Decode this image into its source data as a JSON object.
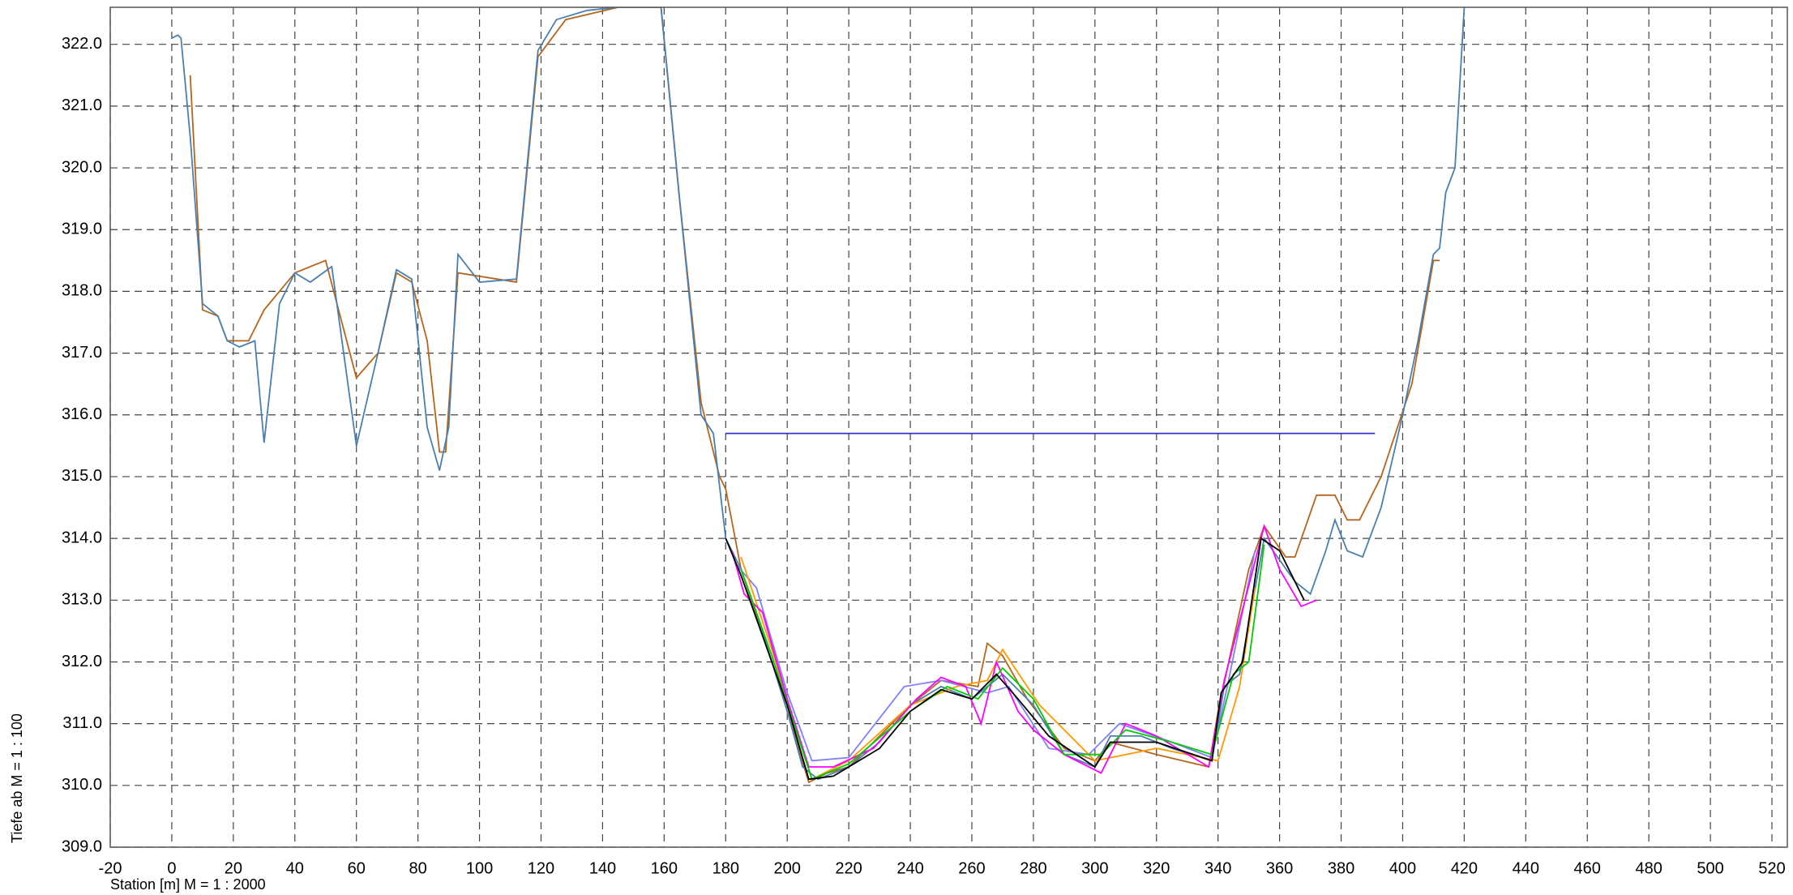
{
  "chart_data": {
    "type": "line",
    "xlabel": "Station [m]  M = 1 :  2000",
    "ylabel": "Tiefe ab    M = 1 : 100",
    "xlim": [
      -20,
      525
    ],
    "ylim": [
      309,
      322.6
    ],
    "xticks": [
      -20,
      0,
      20,
      40,
      60,
      80,
      100,
      120,
      140,
      160,
      180,
      200,
      220,
      240,
      260,
      280,
      300,
      320,
      340,
      360,
      380,
      400,
      420,
      440,
      460,
      480,
      500,
      520
    ],
    "yticks": [
      {
        "value": 309,
        "label": "309.0"
      },
      {
        "value": 310,
        "label": "310.0"
      },
      {
        "value": 311,
        "label": "311.0"
      },
      {
        "value": 312,
        "label": "312.0"
      },
      {
        "value": 313,
        "label": "313.0"
      },
      {
        "value": 314,
        "label": "314.0"
      },
      {
        "value": 315,
        "label": "315.0"
      },
      {
        "value": 316,
        "label": "316.0"
      },
      {
        "value": 317,
        "label": "317.0"
      },
      {
        "value": 318,
        "label": "318.0"
      },
      {
        "value": 319,
        "label": "319.0"
      },
      {
        "value": 320,
        "label": "320.0"
      },
      {
        "value": 321,
        "label": "321.0"
      },
      {
        "value": 322,
        "label": "322.0"
      }
    ],
    "grid": true,
    "series": [
      {
        "color": "#b5651d",
        "x": [
          6,
          10,
          15,
          18,
          25,
          30,
          40,
          50,
          60,
          67,
          73,
          78,
          83,
          87,
          89,
          93,
          112,
          119,
          128,
          145,
          159,
          165,
          172,
          178,
          180,
          185,
          195,
          200,
          207,
          213,
          220,
          240,
          250,
          262,
          265,
          270,
          278,
          290,
          300,
          305,
          320,
          337,
          340,
          350,
          355,
          362,
          365,
          372,
          378,
          382,
          386,
          393,
          403,
          410,
          412
        ],
        "values": [
          321.5,
          317.7,
          317.6,
          317.2,
          317.2,
          317.7,
          318.3,
          318.5,
          316.6,
          317.0,
          318.3,
          318.15,
          317.2,
          315.4,
          315.4,
          318.3,
          318.15,
          321.8,
          322.4,
          322.6,
          322.6,
          319.5,
          316.2,
          315.0,
          314.8,
          313.5,
          312.0,
          311.2,
          310.05,
          310.2,
          310.3,
          311.3,
          311.7,
          311.6,
          312.3,
          312.1,
          311.4,
          310.6,
          310.4,
          310.7,
          310.5,
          310.3,
          311.2,
          313.5,
          314.2,
          313.7,
          313.7,
          314.7,
          314.7,
          314.3,
          314.3,
          315.0,
          316.5,
          318.5,
          318.5
        ]
      },
      {
        "color": "#4a7fb0",
        "x": [
          0,
          2,
          3,
          6,
          10,
          15,
          18,
          22,
          27,
          30,
          35,
          40,
          45,
          52,
          60,
          67,
          73,
          78,
          83,
          87,
          90,
          93,
          100,
          112,
          119,
          125,
          135,
          145,
          159,
          165,
          172,
          176,
          180,
          182,
          185,
          190,
          195,
          200,
          205,
          210,
          215,
          220,
          230,
          240,
          250,
          260,
          265,
          270,
          280,
          290,
          300,
          305,
          315,
          325,
          338,
          342,
          347,
          355,
          365,
          370,
          375,
          378,
          382,
          387,
          393,
          400,
          405,
          410,
          412,
          414,
          417,
          420
        ],
        "values": [
          322.1,
          322.15,
          322.1,
          320.5,
          317.8,
          317.6,
          317.2,
          317.1,
          317.2,
          315.55,
          317.8,
          318.3,
          318.15,
          318.4,
          315.5,
          317.0,
          318.35,
          318.2,
          315.8,
          315.1,
          315.8,
          318.6,
          318.15,
          318.2,
          321.9,
          322.4,
          322.55,
          322.6,
          322.6,
          319.5,
          316.0,
          315.7,
          314.0,
          313.8,
          313.5,
          312.8,
          312.0,
          311.2,
          310.3,
          310.1,
          310.2,
          310.3,
          310.7,
          311.3,
          311.6,
          311.4,
          311.6,
          311.8,
          311.3,
          310.5,
          310.3,
          310.8,
          310.8,
          310.6,
          310.4,
          311.6,
          311.8,
          314.0,
          313.3,
          313.1,
          313.8,
          314.3,
          313.8,
          313.7,
          314.5,
          316.0,
          317.2,
          318.6,
          318.7,
          319.6,
          320.0,
          322.6
        ]
      },
      {
        "color": "#3333cc",
        "x": [
          180,
          391
        ],
        "values": [
          315.7,
          315.7
        ]
      },
      {
        "color": "#8080ff",
        "x": [
          183,
          190,
          200,
          208,
          220,
          238,
          250,
          265,
          272,
          285,
          298,
          308,
          325,
          338,
          343,
          352
        ],
        "values": [
          313.6,
          313.2,
          311.5,
          310.4,
          310.45,
          311.6,
          311.7,
          311.5,
          311.6,
          310.6,
          310.5,
          311.0,
          310.7,
          310.45,
          311.6,
          313.8
        ]
      },
      {
        "color": "#ff9900",
        "x": [
          185,
          195,
          208,
          220,
          240,
          255,
          265,
          270,
          282,
          300,
          320,
          340,
          347,
          352
        ],
        "values": [
          313.7,
          312.2,
          310.1,
          310.4,
          311.3,
          311.6,
          311.7,
          312.2,
          311.3,
          310.4,
          310.6,
          310.4,
          311.6,
          313.2
        ]
      },
      {
        "color": "#ff00ff",
        "x": [
          182,
          186,
          192,
          200,
          207,
          215,
          228,
          242,
          250,
          258,
          263,
          268,
          275,
          280,
          290,
          302,
          310,
          320,
          337,
          342,
          355,
          360,
          367,
          372
        ],
        "values": [
          313.8,
          313.1,
          312.8,
          311.4,
          310.3,
          310.3,
          310.6,
          311.4,
          311.75,
          311.6,
          311.0,
          312.0,
          311.2,
          310.9,
          310.5,
          310.2,
          311.0,
          310.8,
          310.3,
          311.7,
          314.2,
          313.5,
          312.9,
          313.0
        ]
      },
      {
        "color": "#00cc00",
        "x": [
          185,
          195,
          208,
          220,
          240,
          252,
          262,
          270,
          280,
          290,
          302,
          310,
          325,
          338,
          345,
          350,
          355
        ],
        "values": [
          313.5,
          312.1,
          310.1,
          310.35,
          311.2,
          311.6,
          311.4,
          311.9,
          311.4,
          310.5,
          310.5,
          310.9,
          310.7,
          310.5,
          311.8,
          312.0,
          313.9
        ]
      },
      {
        "color": "#000000",
        "x": [
          180,
          185,
          195,
          200,
          207,
          215,
          230,
          240,
          250,
          260,
          268,
          275,
          285,
          300,
          305,
          320,
          338,
          341,
          348,
          354,
          360,
          368
        ],
        "values": [
          314.0,
          313.4,
          312.0,
          311.3,
          310.1,
          310.15,
          310.6,
          311.2,
          311.55,
          311.4,
          311.8,
          311.4,
          310.8,
          310.3,
          310.7,
          310.7,
          310.4,
          311.5,
          312.0,
          314.0,
          313.8,
          313.0
        ]
      }
    ]
  }
}
